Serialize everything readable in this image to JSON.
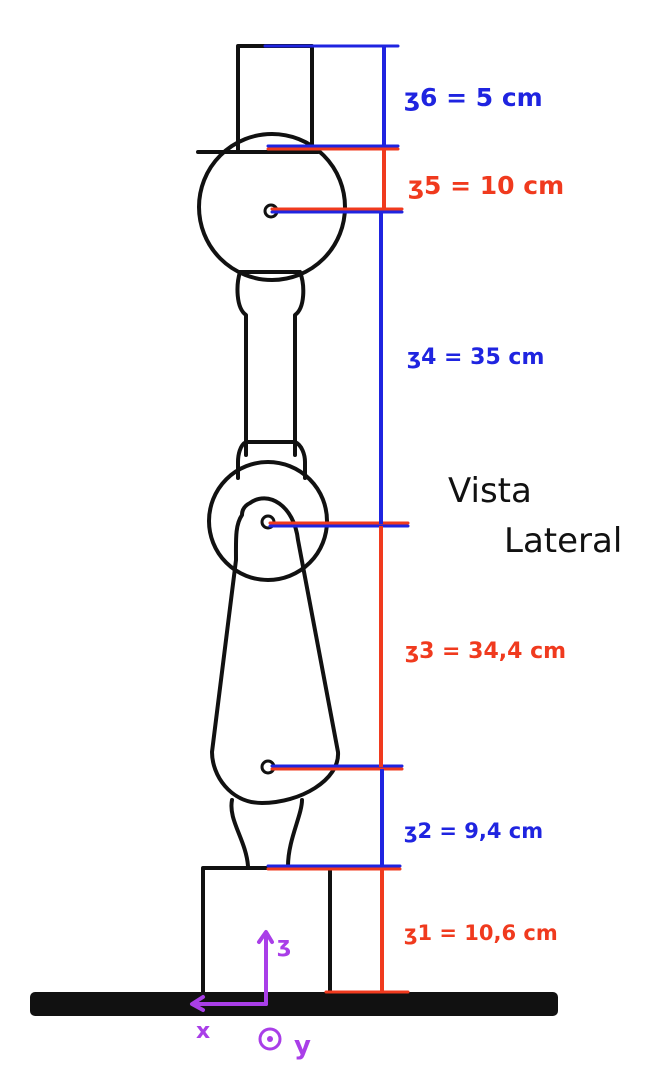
{
  "title": {
    "line1": "Vista",
    "line2": "Lateral"
  },
  "dimensions": [
    {
      "label": "ʒ6 = 5 cm",
      "color": "#1f24e0"
    },
    {
      "label": "ʒ5 = 10 cm",
      "color": "#f03a1e"
    },
    {
      "label": "ʒ4 = 35 cm",
      "color": "#1f24e0"
    },
    {
      "label": "ʒ3 = 34,4 cm",
      "color": "#f03a1e"
    },
    {
      "label": "ʒ2 = 9,4 cm",
      "color": "#1f24e0"
    },
    {
      "label": "ʒ1 = 10,6 cm",
      "color": "#f03a1e"
    }
  ],
  "axes": {
    "z_label": "ʒ",
    "x_label": "x",
    "y_label": "y",
    "color": "#a93ee8"
  },
  "colors": {
    "outline": "#111111",
    "blue": "#1f24e0",
    "red": "#f03a1e",
    "ground": "#111111"
  }
}
